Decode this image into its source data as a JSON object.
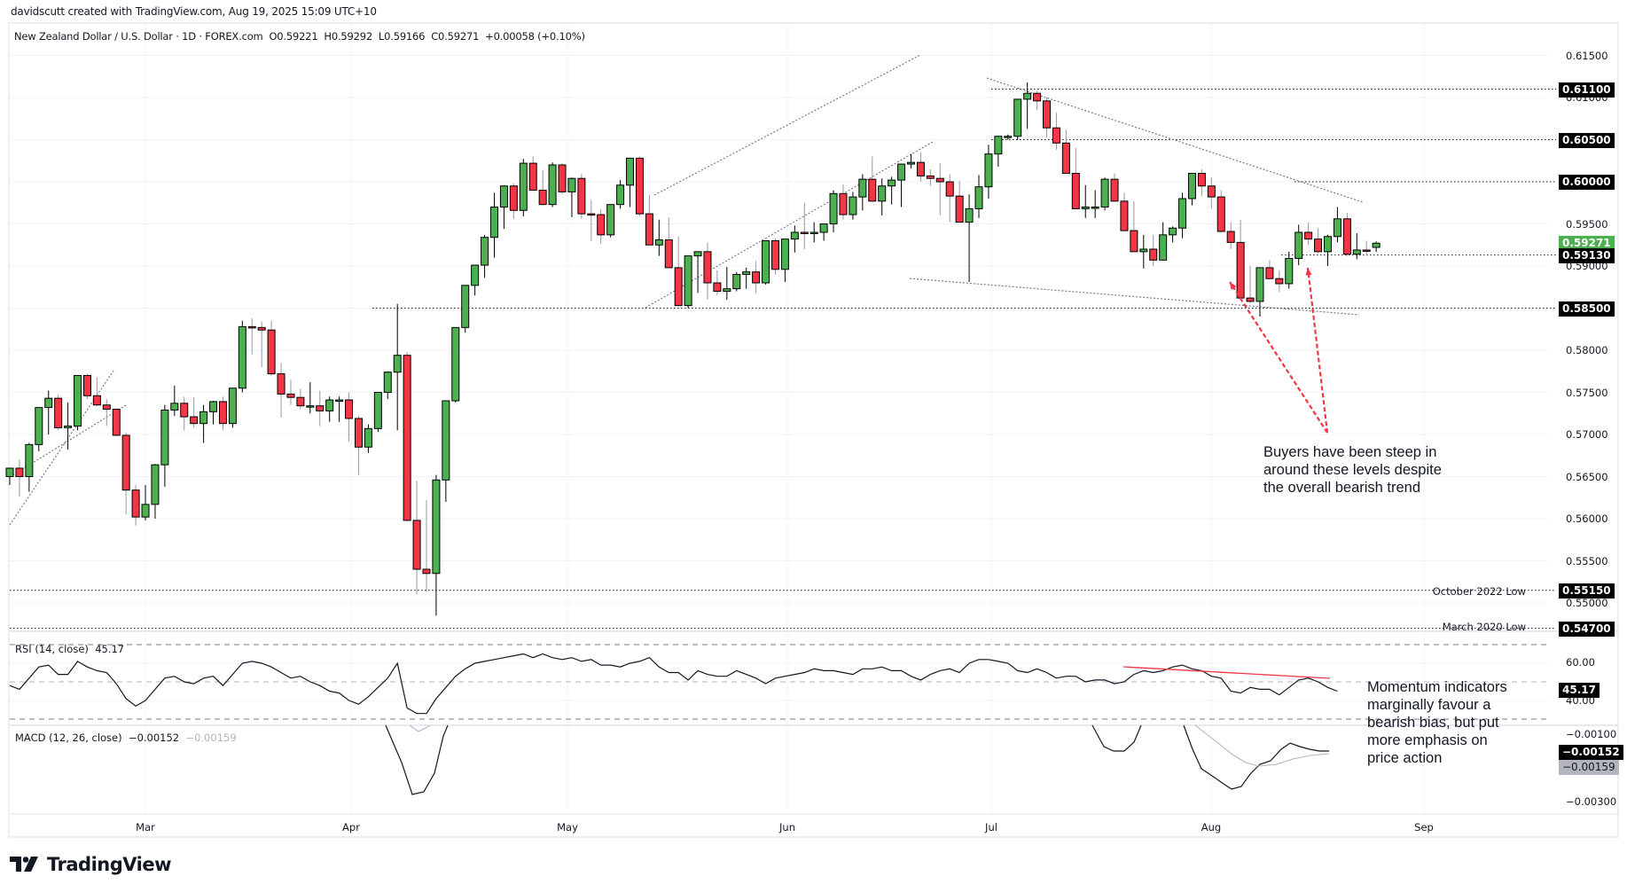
{
  "credit": "davidscutt created with TradingView.com, Aug 19, 2025 15:09 UTC+10",
  "legend": {
    "symbol": "New Zealand Dollar / U.S. Dollar · 1D · FOREX.com",
    "open": "O0.59221",
    "high": "H0.59292",
    "low": "L0.59166",
    "close": "C0.59271",
    "change": "+0.00058 (+0.10%)"
  },
  "colors": {
    "up": "#4caf50",
    "down": "#f23645",
    "border": "#000000",
    "grid": "#f0f3fa",
    "annotation_red": "#f23645"
  },
  "price_axis": {
    "ticks": [
      "0.61500",
      "0.61000",
      "0.60500",
      "0.60000",
      "0.59500",
      "0.59000",
      "0.58500",
      "0.58000",
      "0.57500",
      "0.57000",
      "0.56500",
      "0.56000",
      "0.55500",
      "0.55000"
    ],
    "tags": [
      {
        "value": "0.61100",
        "style": "black"
      },
      {
        "value": "0.60500",
        "style": "black"
      },
      {
        "value": "0.60000",
        "style": "black"
      },
      {
        "value": "0.59271",
        "style": "green"
      },
      {
        "value": "0.59130",
        "style": "black"
      },
      {
        "value": "0.58500",
        "style": "black"
      },
      {
        "value": "0.55150",
        "style": "black"
      },
      {
        "value": "0.54700",
        "style": "black"
      }
    ]
  },
  "levels": {
    "october_2022_low": "October 2022 Low",
    "march_2020_low": "March 2020 Low"
  },
  "time_axis": [
    "Mar",
    "Apr",
    "May",
    "Jun",
    "Jul",
    "Aug",
    "Sep"
  ],
  "annotations": {
    "buyers_note": "Buyers have been steep in\naround these levels despite\nthe overall bearish trend",
    "momentum_note": "Momentum indicators\nmarginally favour a\nbearish bias, but put\nmore emphasis on\nprice action"
  },
  "rsi": {
    "label": "RSI (14, close)",
    "value": "45.17",
    "ticks": [
      "60.00",
      "40.00"
    ],
    "tag": "45.17"
  },
  "macd": {
    "label": "MACD (12, 26, close)",
    "value": "−0.00152",
    "signal": "−0.00159",
    "ticks": [
      "−0.00100",
      "−0.00300"
    ],
    "tag_macd": "−0.00152",
    "tag_signal": "−0.00159"
  },
  "branding": {
    "logo_text": "TradingView"
  },
  "chart_data": {
    "type": "candlestick",
    "title": "New Zealand Dollar / U.S. Dollar · 1D · FOREX.com",
    "xlabel": "",
    "ylabel": "Price",
    "ylim": [
      0.5455,
      0.6175
    ],
    "x_ticks": [
      "Mar",
      "Apr",
      "May",
      "Jun",
      "Jul",
      "Aug",
      "Sep"
    ],
    "horizontal_levels": [
      0.611,
      0.605,
      0.6,
      0.5913,
      0.585,
      0.5515,
      0.547
    ],
    "last": {
      "open": 0.59221,
      "high": 0.59292,
      "low": 0.59166,
      "close": 0.59271,
      "change": 0.00058,
      "change_pct": 0.1
    },
    "ohlc": [
      [
        0.565,
        0.566,
        0.564,
        0.566
      ],
      [
        0.566,
        0.567,
        0.5626,
        0.565
      ],
      [
        0.565,
        0.569,
        0.5632,
        0.5688
      ],
      [
        0.5688,
        0.5728,
        0.568,
        0.5732
      ],
      [
        0.5732,
        0.5752,
        0.57,
        0.5743
      ],
      [
        0.5743,
        0.5747,
        0.5705,
        0.5708
      ],
      [
        0.5708,
        0.5738,
        0.5682,
        0.571
      ],
      [
        0.571,
        0.577,
        0.5705,
        0.577
      ],
      [
        0.577,
        0.5772,
        0.5742,
        0.5746
      ],
      [
        0.5746,
        0.5768,
        0.5734,
        0.5735
      ],
      [
        0.5735,
        0.5742,
        0.571,
        0.573
      ],
      [
        0.573,
        0.573,
        0.5698,
        0.5699
      ],
      [
        0.5699,
        0.5702,
        0.5605,
        0.5634
      ],
      [
        0.5634,
        0.564,
        0.5592,
        0.5602
      ],
      [
        0.5602,
        0.564,
        0.5598,
        0.5617
      ],
      [
        0.5617,
        0.5665,
        0.56,
        0.5664
      ],
      [
        0.5664,
        0.5735,
        0.5638,
        0.5729
      ],
      [
        0.5729,
        0.5758,
        0.5722,
        0.5737
      ],
      [
        0.5737,
        0.5745,
        0.5705,
        0.5721
      ],
      [
        0.5721,
        0.5744,
        0.5708,
        0.5713
      ],
      [
        0.5713,
        0.5735,
        0.569,
        0.5727
      ],
      [
        0.5727,
        0.574,
        0.5712,
        0.5739
      ],
      [
        0.5739,
        0.5745,
        0.5705,
        0.5713
      ],
      [
        0.5713,
        0.5755,
        0.5708,
        0.5755
      ],
      [
        0.5755,
        0.5835,
        0.575,
        0.5828
      ],
      [
        0.5828,
        0.5838,
        0.5795,
        0.5827
      ],
      [
        0.5827,
        0.5834,
        0.578,
        0.5824
      ],
      [
        0.5824,
        0.5835,
        0.577,
        0.5772
      ],
      [
        0.5772,
        0.5785,
        0.572,
        0.5748
      ],
      [
        0.5748,
        0.5765,
        0.5735,
        0.5744
      ],
      [
        0.5744,
        0.5754,
        0.573,
        0.5734
      ],
      [
        0.5734,
        0.5762,
        0.5725,
        0.5734
      ],
      [
        0.5734,
        0.5752,
        0.571,
        0.5728
      ],
      [
        0.5728,
        0.5745,
        0.5715,
        0.5741
      ],
      [
        0.5741,
        0.5745,
        0.5715,
        0.5741
      ],
      [
        0.5741,
        0.575,
        0.5692,
        0.5719
      ],
      [
        0.5719,
        0.5722,
        0.5652,
        0.5685
      ],
      [
        0.5685,
        0.5712,
        0.5678,
        0.5707
      ],
      [
        0.5707,
        0.5744,
        0.5703,
        0.575
      ],
      [
        0.575,
        0.5775,
        0.5742,
        0.5774
      ],
      [
        0.5774,
        0.5855,
        0.5705,
        0.5794
      ],
      [
        0.5794,
        0.5798,
        0.5597,
        0.5598
      ],
      [
        0.5598,
        0.5645,
        0.551,
        0.554
      ],
      [
        0.554,
        0.5622,
        0.5513,
        0.5535
      ],
      [
        0.5535,
        0.5652,
        0.5485,
        0.5646
      ],
      [
        0.5646,
        0.572,
        0.562,
        0.574
      ],
      [
        0.574,
        0.5808,
        0.5738,
        0.5827
      ],
      [
        0.5827,
        0.586,
        0.5821,
        0.5877
      ],
      [
        0.5877,
        0.5893,
        0.5865,
        0.5901
      ],
      [
        0.5901,
        0.5937,
        0.5886,
        0.5934
      ],
      [
        0.5934,
        0.5987,
        0.591,
        0.597
      ],
      [
        0.597,
        0.5996,
        0.5944,
        0.5995
      ],
      [
        0.5995,
        0.5998,
        0.5956,
        0.5966
      ],
      [
        0.5966,
        0.6027,
        0.5959,
        0.6022
      ],
      [
        0.6022,
        0.603,
        0.599,
        0.599
      ],
      [
        0.599,
        0.6014,
        0.5972,
        0.5973
      ],
      [
        0.5973,
        0.6023,
        0.597,
        0.602
      ],
      [
        0.602,
        0.6022,
        0.5985,
        0.5988
      ],
      [
        0.5988,
        0.6005,
        0.5958,
        0.6004
      ],
      [
        0.6004,
        0.6009,
        0.5956,
        0.5962
      ],
      [
        0.5962,
        0.5978,
        0.593,
        0.5961
      ],
      [
        0.5961,
        0.5967,
        0.5926,
        0.5937
      ],
      [
        0.5937,
        0.5973,
        0.5934,
        0.5973
      ],
      [
        0.5973,
        0.6002,
        0.5968,
        0.5996
      ],
      [
        0.5996,
        0.6008,
        0.597,
        0.6028
      ],
      [
        0.6028,
        0.603,
        0.596,
        0.5962
      ],
      [
        0.5962,
        0.5984,
        0.5945,
        0.5925
      ],
      [
        0.5925,
        0.5955,
        0.5912,
        0.5931
      ],
      [
        0.5931,
        0.5958,
        0.59,
        0.5898
      ],
      [
        0.5898,
        0.5935,
        0.5885,
        0.5853
      ],
      [
        0.5853,
        0.59,
        0.585,
        0.5912
      ],
      [
        0.5912,
        0.5915,
        0.5868,
        0.5917
      ],
      [
        0.5917,
        0.5928,
        0.586,
        0.588
      ],
      [
        0.588,
        0.5895,
        0.5865,
        0.587
      ],
      [
        0.587,
        0.5899,
        0.586,
        0.5873
      ],
      [
        0.5873,
        0.5893,
        0.587,
        0.589
      ],
      [
        0.589,
        0.5898,
        0.5873,
        0.5893
      ],
      [
        0.5893,
        0.5906,
        0.5868,
        0.588
      ],
      [
        0.588,
        0.592,
        0.5878,
        0.593
      ],
      [
        0.593,
        0.5933,
        0.589,
        0.5896
      ],
      [
        0.5896,
        0.5927,
        0.5881,
        0.5932
      ],
      [
        0.5932,
        0.5948,
        0.5916,
        0.594
      ],
      [
        0.594,
        0.5975,
        0.592,
        0.5939
      ],
      [
        0.5939,
        0.5952,
        0.5928,
        0.594
      ],
      [
        0.594,
        0.595,
        0.593,
        0.595
      ],
      [
        0.595,
        0.599,
        0.594,
        0.5986
      ],
      [
        0.5986,
        0.5997,
        0.5955,
        0.5961
      ],
      [
        0.5961,
        0.5988,
        0.5955,
        0.5982
      ],
      [
        0.5982,
        0.6009,
        0.5966,
        0.6003
      ],
      [
        0.6003,
        0.603,
        0.6001,
        0.5977
      ],
      [
        0.5977,
        0.6004,
        0.596,
        0.5995
      ],
      [
        0.5995,
        0.6006,
        0.5973,
        0.6002
      ],
      [
        0.6002,
        0.6013,
        0.597,
        0.6021
      ],
      [
        0.6021,
        0.6033,
        0.6016,
        0.6023
      ],
      [
        0.6023,
        0.6035,
        0.6,
        0.6007
      ],
      [
        0.6007,
        0.6015,
        0.5995,
        0.6004
      ],
      [
        0.6004,
        0.6022,
        0.596,
        0.6
      ],
      [
        0.6,
        0.6009,
        0.5952,
        0.5983
      ],
      [
        0.5983,
        0.6001,
        0.596,
        0.5952
      ],
      [
        0.5952,
        0.5985,
        0.5881,
        0.5968
      ],
      [
        0.5968,
        0.6008,
        0.5957,
        0.5994
      ],
      [
        0.5994,
        0.6044,
        0.598,
        0.6033
      ],
      [
        0.6033,
        0.6052,
        0.6018,
        0.6054
      ],
      [
        0.6054,
        0.6056,
        0.605,
        0.6054
      ],
      [
        0.6054,
        0.608,
        0.605,
        0.6098
      ],
      [
        0.6098,
        0.6118,
        0.6063,
        0.6105
      ],
      [
        0.6105,
        0.6108,
        0.6085,
        0.6096
      ],
      [
        0.6096,
        0.61,
        0.6053,
        0.6064
      ],
      [
        0.6064,
        0.6082,
        0.6038,
        0.6046
      ],
      [
        0.6046,
        0.6062,
        0.602,
        0.601
      ],
      [
        0.601,
        0.604,
        0.5986,
        0.5968
      ],
      [
        0.5968,
        0.5996,
        0.5957,
        0.597
      ],
      [
        0.597,
        0.599,
        0.5957,
        0.597
      ],
      [
        0.597,
        0.6005,
        0.5966,
        0.6003
      ],
      [
        0.6003,
        0.601,
        0.5977,
        0.5977
      ],
      [
        0.5977,
        0.5987,
        0.5945,
        0.5942
      ],
      [
        0.5942,
        0.5977,
        0.5927,
        0.5917
      ],
      [
        0.5917,
        0.5937,
        0.5897,
        0.592
      ],
      [
        0.592,
        0.5937,
        0.59,
        0.5907
      ],
      [
        0.5907,
        0.5952,
        0.591,
        0.5937
      ],
      [
        0.5937,
        0.5947,
        0.5928,
        0.5945
      ],
      [
        0.5945,
        0.5987,
        0.5933,
        0.598
      ],
      [
        0.598,
        0.6004,
        0.5972,
        0.601
      ],
      [
        0.601,
        0.6015,
        0.5983,
        0.5995
      ],
      [
        0.5995,
        0.6005,
        0.5968,
        0.5982
      ],
      [
        0.5982,
        0.599,
        0.5953,
        0.5941
      ],
      [
        0.5941,
        0.5952,
        0.592,
        0.5928
      ],
      [
        0.5928,
        0.5955,
        0.5908,
        0.5862
      ],
      [
        0.5862,
        0.59,
        0.5856,
        0.5858
      ],
      [
        0.5858,
        0.5895,
        0.584,
        0.5898
      ],
      [
        0.5898,
        0.5907,
        0.5886,
        0.5885
      ],
      [
        0.5885,
        0.5895,
        0.5869,
        0.5879
      ],
      [
        0.5879,
        0.5917,
        0.5873,
        0.5909
      ],
      [
        0.5909,
        0.5949,
        0.5901,
        0.594
      ],
      [
        0.594,
        0.5952,
        0.5925,
        0.5932
      ],
      [
        0.5932,
        0.5945,
        0.5915,
        0.5917
      ],
      [
        0.5917,
        0.5937,
        0.59,
        0.5935
      ],
      [
        0.5935,
        0.597,
        0.5928,
        0.5956
      ],
      [
        0.5956,
        0.5963,
        0.5912,
        0.5914
      ],
      [
        0.5914,
        0.5939,
        0.5908,
        0.5919
      ],
      [
        0.5919,
        0.593,
        0.5912,
        0.5918
      ],
      [
        0.59221,
        0.59292,
        0.59166,
        0.59271
      ]
    ],
    "rsi_series": [
      48,
      46,
      52,
      58,
      59,
      54,
      54,
      61,
      58,
      56,
      55,
      49,
      41,
      37,
      40,
      46,
      52,
      53,
      50,
      49,
      52,
      53,
      48,
      54,
      60,
      61,
      60,
      58,
      55,
      52,
      53,
      50,
      48,
      45,
      44,
      40,
      38,
      42,
      47,
      52,
      60,
      36,
      33,
      33,
      41,
      47,
      53,
      57,
      60,
      61,
      62,
      63,
      64,
      65,
      63,
      65,
      63,
      62,
      63,
      61,
      62,
      59,
      59,
      58,
      60,
      61,
      63,
      58,
      55,
      55,
      51,
      56,
      54,
      53,
      53,
      56,
      54,
      52,
      49,
      52,
      53,
      54,
      55,
      57,
      56,
      56,
      55,
      54,
      57,
      57,
      58,
      56,
      56,
      53,
      51,
      54,
      56,
      57,
      55,
      60,
      62,
      62,
      61,
      60,
      56,
      55,
      57,
      55,
      52,
      53,
      53,
      50,
      51,
      51,
      49,
      50,
      54,
      56,
      55,
      56,
      58,
      59,
      57,
      56,
      53,
      52,
      45,
      44,
      47,
      46,
      46,
      43,
      47,
      51,
      52,
      50,
      47,
      45
    ],
    "macd_series": [],
    "rsi_levels": {
      "upper": 70,
      "mid": 50,
      "lower": 30
    }
  }
}
